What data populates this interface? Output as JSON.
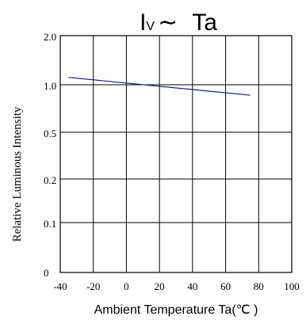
{
  "chart_data": {
    "type": "line",
    "title": {
      "main": "I",
      "sub": "V",
      "tilde": "∼",
      "rest": "Ta"
    },
    "xlabel": "Ambient Temperature Ta(℃ )",
    "ylabel": "Relative Luminous Intensity",
    "x_ticks": [
      "-40",
      "-20",
      "0",
      "20",
      "40",
      "60",
      "80",
      "100"
    ],
    "x_tick_values": [
      -40,
      -20,
      0,
      20,
      40,
      60,
      80,
      100
    ],
    "y_ticks": [
      "0",
      "0.1",
      "0.2",
      "0.5",
      "1.0",
      "2.0"
    ],
    "grid": true,
    "line_color": "#1a1a8c",
    "series": [
      {
        "x": [
          -35,
          75
        ],
        "y": [
          1.15,
          0.89
        ]
      }
    ]
  }
}
